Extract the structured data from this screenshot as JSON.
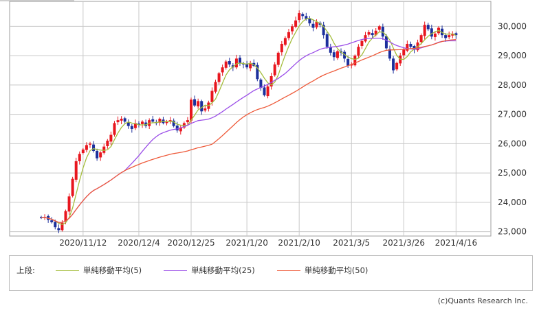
{
  "chart_data": {
    "type": "candlestick",
    "x_tick_labels": [
      "2020/11/12",
      "2020/12/4",
      "2020/12/25",
      "2021/1/20",
      "2021/2/10",
      "2021/3/5",
      "2021/3/26",
      "2021/4/16"
    ],
    "x_tick_index": [
      12,
      28,
      43,
      59,
      74,
      89,
      104,
      119
    ],
    "y_tick_labels": [
      "30,000",
      "29,000",
      "28,000",
      "27,000",
      "26,000",
      "25,000",
      "24,000",
      "23,000"
    ],
    "y_tick_values": [
      30000,
      29000,
      28000,
      27000,
      26000,
      25000,
      24000,
      23000
    ],
    "ylim": [
      22850,
      30850
    ],
    "grid": true,
    "up_color": "#e8161e",
    "down_color": "#1c2f9c",
    "closes": [
      23470,
      23500,
      23400,
      23320,
      23150,
      23050,
      23300,
      23700,
      24200,
      24800,
      25400,
      25650,
      25800,
      25950,
      26000,
      25750,
      25500,
      25700,
      25900,
      26100,
      26300,
      26700,
      26800,
      26850,
      26750,
      26600,
      26500,
      26700,
      26650,
      26750,
      26600,
      26800,
      26750,
      26700,
      26850,
      26700,
      26750,
      26800,
      26600,
      26450,
      26550,
      26700,
      26800,
      27500,
      27300,
      27450,
      27100,
      27200,
      27400,
      27800,
      28100,
      28400,
      28600,
      28800,
      28700,
      28600,
      28900,
      28750,
      28700,
      28600,
      28750,
      28650,
      28200,
      27900,
      27650,
      27950,
      28300,
      28700,
      29100,
      29400,
      29600,
      29800,
      30000,
      30200,
      30450,
      30350,
      30250,
      30100,
      29950,
      30150,
      30050,
      29700,
      29300,
      29100,
      28950,
      29150,
      29100,
      28900,
      28650,
      28700,
      29000,
      29300,
      29500,
      29700,
      29800,
      29700,
      29850,
      30000,
      29650,
      29250,
      28900,
      28500,
      28750,
      29000,
      29200,
      29400,
      29300,
      29200,
      29450,
      29700,
      30050,
      29900,
      29650,
      29750,
      29950,
      29700,
      29600,
      29700,
      29750,
      29700
    ],
    "series": [
      {
        "name": "単純移動平均(5)",
        "window": 5,
        "color": "#a4bd3c"
      },
      {
        "name": "単純移動平均(25)",
        "window": 25,
        "color": "#9b4ee8"
      },
      {
        "name": "単純移動平均(50)",
        "window": 50,
        "color": "#ee5a3a"
      }
    ]
  },
  "legend": {
    "prefix": "上段:",
    "items": [
      {
        "label": "単純移動平均(5)",
        "color": "#a4bd3c"
      },
      {
        "label": "単純移動平均(25)",
        "color": "#9b4ee8"
      },
      {
        "label": "単純移動平均(50)",
        "color": "#ee5a3a"
      }
    ]
  },
  "footer": {
    "copyright": "(c)Quants Research Inc."
  }
}
